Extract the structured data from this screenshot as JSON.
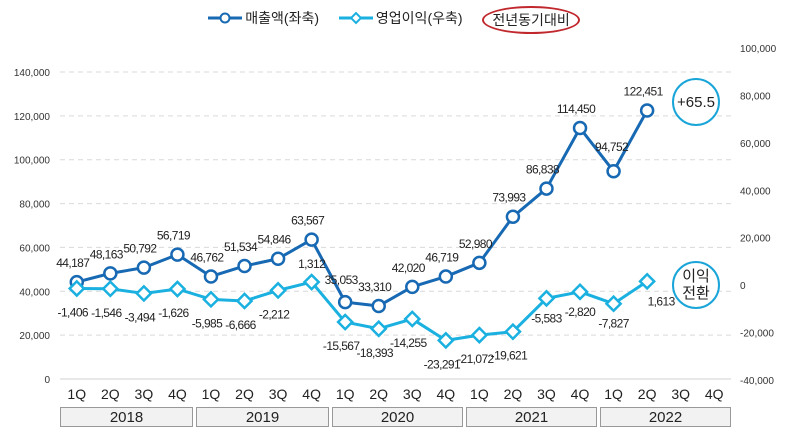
{
  "legend": {
    "sales_label": "매출액(좌축)",
    "op_label": "영업이익(우축)",
    "yoy_label": "전년동기대비"
  },
  "callouts": {
    "sales_yoy": "+65.5",
    "op_line1": "이익",
    "op_line2": "전환"
  },
  "colors": {
    "sales": "#1769b3",
    "op": "#1ab0e0",
    "yoy_ring": "#c0282d",
    "callout_ring": "#1aa5d9"
  },
  "chart_data": {
    "type": "line",
    "title": "",
    "x": [
      "1Q",
      "2Q",
      "3Q",
      "4Q",
      "1Q",
      "2Q",
      "3Q",
      "4Q",
      "1Q",
      "2Q",
      "3Q",
      "4Q",
      "1Q",
      "2Q",
      "3Q",
      "4Q",
      "1Q",
      "2Q",
      "3Q",
      "4Q"
    ],
    "years": [
      "2018",
      "2019",
      "2020",
      "2021",
      "2022"
    ],
    "series": [
      {
        "name": "매출액(좌축)",
        "axis": "left",
        "values": [
          44187,
          48163,
          50792,
          56719,
          46762,
          51534,
          54846,
          63567,
          35053,
          33310,
          42020,
          46719,
          52980,
          73993,
          86838,
          114450,
          94752,
          122451,
          null,
          null
        ],
        "labels": [
          "44,187",
          "48,163",
          "50,792",
          "56,719",
          "46,762",
          "51,534",
          "54,846",
          "63,567",
          "35,053",
          "33,310",
          "42,020",
          "46,719",
          "52,980",
          "73,993",
          "86,838",
          "114,450",
          "94,752",
          "122,451",
          "",
          ""
        ]
      },
      {
        "name": "영업이익(우축)",
        "axis": "right",
        "values": [
          -1406,
          -1546,
          -3494,
          -1626,
          -5985,
          -6666,
          -2212,
          1312,
          -15567,
          -18393,
          -14255,
          -23291,
          -21072,
          -19621,
          -5583,
          -2820,
          -7827,
          1613,
          null,
          null
        ],
        "labels": [
          "-1,406",
          "-1,546",
          "-3,494",
          "-1,626",
          "-5,985",
          "-6,666",
          "-2,212",
          "1,312",
          "-15,567",
          "-18,393",
          "-14,255",
          "-23,291",
          "-21,072",
          "-19,621",
          "-5,583",
          "-2,820",
          "-7,827",
          "1,613",
          "",
          ""
        ]
      }
    ],
    "left_axis": {
      "ylim": [
        0,
        140000
      ],
      "ticks": [
        "0",
        "20,000",
        "40,000",
        "60,000",
        "80,000",
        "100,000",
        "120,000",
        "140,000"
      ]
    },
    "right_axis": {
      "ylim": [
        -40000,
        100000
      ],
      "ticks": [
        "-40,000",
        "-20,000",
        "0",
        "20,000",
        "40,000",
        "60,000",
        "80,000",
        "100,000"
      ]
    },
    "grid": true,
    "legend_position": "top-center"
  }
}
